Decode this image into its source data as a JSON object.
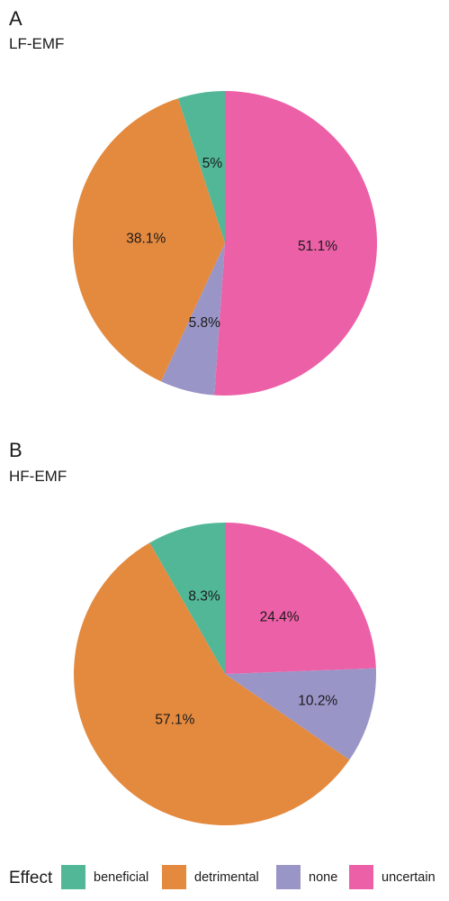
{
  "colors": {
    "beneficial": "#52b797",
    "detrimental": "#e48a3f",
    "none": "#9a95c7",
    "uncertain": "#ec60a7"
  },
  "chart_data": [
    {
      "type": "pie",
      "panel": "A",
      "title": "LF-EMF",
      "categories": [
        "beneficial",
        "detrimental",
        "none",
        "uncertain"
      ],
      "values": [
        5.0,
        38.1,
        5.8,
        51.1
      ],
      "labels": [
        "5%",
        "38.1%",
        "5.8%",
        "51.1%"
      ]
    },
    {
      "type": "pie",
      "panel": "B",
      "title": "HF-EMF",
      "categories": [
        "beneficial",
        "detrimental",
        "none",
        "uncertain"
      ],
      "values": [
        8.3,
        57.1,
        10.2,
        24.4
      ],
      "labels": [
        "8.3%",
        "57.1%",
        "10.2%",
        "24.4%"
      ]
    }
  ],
  "legend": {
    "title": "Effect",
    "items": [
      "beneficial",
      "detrimental",
      "none",
      "uncertain"
    ]
  }
}
